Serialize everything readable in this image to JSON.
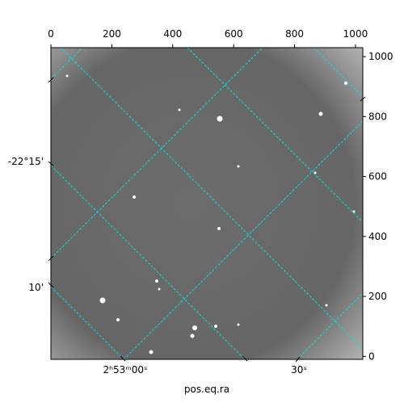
{
  "chart_data": {
    "type": "image",
    "xlim": [
      0,
      1024
    ],
    "xticks": [
      0,
      200,
      400,
      600,
      800,
      1000
    ],
    "ylim": [
      -10,
      1030
    ],
    "yticks": [
      0,
      200,
      400,
      600,
      800,
      1000
    ],
    "ra_ticks": [
      "2ʰ53ᵐ00ˢ",
      "30ˢ"
    ],
    "dec_ticks": [
      "-22°15'",
      "10'"
    ],
    "x_label": "pos.eq.ra"
  }
}
